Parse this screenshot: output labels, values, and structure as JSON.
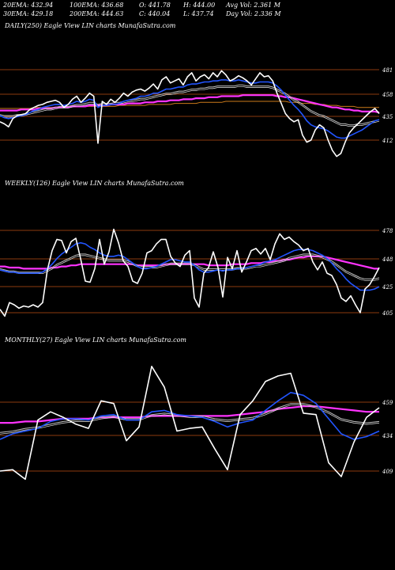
{
  "header": {
    "row1": {
      "ema20": "20EMA: 432.94",
      "ema100": "100EMA: 436.68",
      "open": "O: 441.78",
      "high": "H: 444.00",
      "avgvol": "Avg Vol: 2.361 M"
    },
    "row2": {
      "ema30": "30EMA: 429.18",
      "ema200": "200EMA: 444.63",
      "close": "C: 440.04",
      "low": "L: 437.74",
      "dayvol": "Day Vol: 2.336  M"
    }
  },
  "panels": [
    {
      "label": "DAILY(250) Eagle  View  LIN  charts MunafaSutra.com",
      "ticks": [
        "481",
        "458",
        "435",
        "412"
      ]
    },
    {
      "label": "WEEKLY(126) Eagle  View  LIN  charts MunafaSutra.com",
      "ticks": [
        "478",
        "448",
        "425",
        "405"
      ]
    },
    {
      "label": "MONTHLY(27) Eagle  View  LIN  charts MunafaSutra.com",
      "ticks": [
        "459",
        "434",
        "409"
      ]
    }
  ],
  "colors": {
    "background": "#000000",
    "price": "#ffffff",
    "ema_short": "#2255ff",
    "ema_long": "#ff33ff",
    "level_line": "#8b3a0e",
    "ema_mid": "#c0c0c0",
    "ema_orange": "#cc7a1a"
  },
  "chart_data": [
    {
      "type": "line",
      "title": "DAILY(250) Eagle  View  LIN  charts MunafaSutra.com",
      "ylim": [
        385,
        500
      ],
      "yticks": [
        481,
        458,
        435,
        412
      ],
      "series": [
        {
          "values": [
            430,
            428,
            425,
            433,
            436,
            437,
            438,
            442,
            444,
            446,
            447,
            449,
            450,
            451,
            449,
            444,
            447,
            452,
            455,
            449,
            453,
            458,
            455,
            409,
            450,
            447,
            452,
            449,
            453,
            458,
            455,
            459,
            461,
            462,
            460,
            463,
            467,
            462,
            471,
            474,
            468,
            470,
            472,
            466,
            474,
            478,
            470,
            474,
            476,
            472,
            478,
            474,
            480,
            476,
            470,
            472,
            475,
            473,
            470,
            466,
            472,
            478,
            474,
            475,
            470,
            458,
            448,
            438,
            433,
            430,
            432,
            417,
            410,
            412,
            422,
            427,
            424,
            412,
            402,
            396,
            399,
            410,
            419,
            424,
            428,
            432,
            436,
            440,
            443,
            438
          ]
        },
        {
          "values": [
            436,
            434,
            433,
            434,
            435,
            436,
            437,
            439,
            441,
            442,
            444,
            445,
            446,
            447,
            447,
            446,
            447,
            448,
            450,
            449,
            450,
            452,
            451,
            444,
            446,
            446,
            447,
            447,
            448,
            450,
            451,
            452,
            453,
            455,
            455,
            456,
            458,
            458,
            460,
            462,
            462,
            463,
            464,
            464,
            466,
            467,
            467,
            468,
            469,
            469,
            470,
            470,
            471,
            471,
            470,
            470,
            471,
            470,
            469,
            468,
            468,
            469,
            469,
            469,
            468,
            465,
            461,
            456,
            451,
            446,
            442,
            437,
            431,
            427,
            425,
            424,
            423,
            421,
            418,
            415,
            414,
            414,
            416,
            418,
            420,
            422,
            425,
            428,
            431,
            432
          ]
        },
        {
          "values": [
            437,
            436,
            436,
            436,
            437,
            437,
            438,
            439,
            440,
            441,
            442,
            443,
            443,
            444,
            445,
            445,
            445,
            446,
            447,
            447,
            448,
            449,
            449,
            447,
            448,
            448,
            448,
            449,
            449,
            450,
            451,
            451,
            452,
            453,
            453,
            454,
            455,
            456,
            457,
            458,
            458,
            459,
            460,
            460,
            461,
            462,
            462,
            463,
            463,
            464,
            464,
            465,
            465,
            465,
            465,
            465,
            466,
            466,
            465,
            465,
            465,
            465,
            465,
            465,
            464,
            462,
            460,
            458,
            455,
            452,
            450,
            447,
            444,
            441,
            439,
            437,
            436,
            434,
            432,
            430,
            428,
            428,
            427,
            427,
            428,
            428,
            429,
            430,
            431,
            432
          ]
        },
        {
          "values": [
            441,
            441,
            441,
            441,
            441,
            442,
            442,
            442,
            442,
            443,
            443,
            443,
            443,
            444,
            444,
            444,
            444,
            445,
            445,
            445,
            445,
            446,
            446,
            446,
            446,
            446,
            447,
            447,
            447,
            447,
            448,
            448,
            448,
            448,
            449,
            449,
            449,
            450,
            450,
            450,
            451,
            451,
            451,
            452,
            452,
            452,
            453,
            453,
            453,
            454,
            454,
            454,
            455,
            455,
            455,
            455,
            455,
            456,
            456,
            456,
            456,
            456,
            456,
            456,
            456,
            455,
            455,
            454,
            454,
            453,
            452,
            451,
            450,
            449,
            448,
            447,
            446,
            445,
            444,
            444,
            443,
            442,
            442,
            441,
            441,
            440,
            440,
            440,
            440,
            439
          ]
        },
        {
          "values": [
            443,
            443,
            443,
            443,
            443,
            443,
            443,
            443,
            444,
            444,
            444,
            444,
            444,
            444,
            444,
            444,
            444,
            445,
            445,
            445,
            445,
            445,
            445,
            445,
            445,
            445,
            445,
            445,
            446,
            446,
            446,
            446,
            446,
            446,
            446,
            447,
            447,
            447,
            447,
            447,
            447,
            448,
            448,
            448,
            448,
            448,
            448,
            449,
            449,
            449,
            449,
            449,
            449,
            450,
            450,
            450,
            450,
            450,
            450,
            450,
            450,
            450,
            450,
            450,
            450,
            450,
            450,
            450,
            449,
            449,
            449,
            448,
            448,
            448,
            447,
            447,
            447,
            446,
            446,
            446,
            445,
            445,
            445,
            445,
            444,
            444,
            444,
            444,
            444,
            444
          ]
        }
      ]
    },
    {
      "type": "line",
      "title": "WEEKLY(126) Eagle  View  LIN  charts MunafaSutra.com",
      "ylim": [
        385,
        500
      ],
      "yticks": [
        478,
        448,
        425,
        405
      ],
      "series": [
        {
          "values": [
            408,
            402,
            414,
            412,
            409,
            411,
            410,
            412,
            410,
            414,
            443,
            460,
            470,
            469,
            458,
            468,
            471,
            453,
            433,
            432,
            444,
            470,
            448,
            459,
            479,
            467,
            451,
            446,
            433,
            431,
            440,
            458,
            460,
            466,
            470,
            470,
            455,
            449,
            446,
            456,
            460,
            418,
            410,
            440,
            445,
            459,
            445,
            419,
            454,
            444,
            460,
            441,
            450,
            460,
            462,
            457,
            462,
            452,
            466,
            475,
            470,
            472,
            468,
            465,
            460,
            462,
            450,
            443,
            450,
            440,
            438,
            430,
            418,
            415,
            420,
            412,
            405,
            426,
            430,
            437,
            445
          ]
        },
        {
          "values": [
            443,
            442,
            441,
            441,
            440,
            440,
            440,
            440,
            440,
            441,
            444,
            448,
            453,
            457,
            460,
            463,
            466,
            467,
            466,
            463,
            461,
            458,
            456,
            455,
            455,
            456,
            455,
            452,
            449,
            446,
            444,
            444,
            445,
            446,
            448,
            450,
            452,
            452,
            451,
            450,
            450,
            447,
            443,
            441,
            441,
            442,
            443,
            442,
            443,
            443,
            444,
            444,
            445,
            446,
            447,
            448,
            450,
            451,
            452,
            454,
            456,
            458,
            460,
            461,
            461,
            461,
            460,
            458,
            456,
            453,
            449,
            444,
            440,
            435,
            431,
            428,
            425,
            425,
            425,
            426,
            428
          ]
        },
        {
          "values": [
            444,
            443,
            442,
            442,
            441,
            441,
            441,
            441,
            441,
            441,
            443,
            445,
            448,
            450,
            452,
            454,
            456,
            457,
            457,
            456,
            455,
            454,
            453,
            452,
            452,
            452,
            452,
            451,
            449,
            447,
            446,
            446,
            446,
            446,
            447,
            448,
            449,
            449,
            449,
            449,
            449,
            448,
            446,
            444,
            444,
            444,
            444,
            444,
            444,
            444,
            445,
            445,
            445,
            446,
            447,
            447,
            448,
            449,
            450,
            451,
            452,
            454,
            455,
            456,
            457,
            457,
            457,
            456,
            455,
            453,
            451,
            448,
            445,
            442,
            440,
            438,
            436,
            435,
            435,
            435,
            436
          ]
        },
        {
          "values": [
            446,
            446,
            445,
            445,
            445,
            444,
            444,
            444,
            444,
            444,
            444,
            445,
            445,
            446,
            446,
            447,
            447,
            448,
            448,
            448,
            448,
            448,
            448,
            448,
            448,
            448,
            448,
            448,
            448,
            447,
            447,
            447,
            447,
            447,
            447,
            448,
            448,
            448,
            448,
            448,
            448,
            448,
            448,
            448,
            447,
            447,
            447,
            447,
            447,
            448,
            448,
            448,
            448,
            449,
            449,
            449,
            450,
            450,
            451,
            451,
            452,
            452,
            453,
            454,
            454,
            455,
            455,
            455,
            455,
            454,
            453,
            452,
            451,
            450,
            449,
            448,
            447,
            446,
            445,
            444,
            444
          ]
        }
      ]
    },
    {
      "type": "line",
      "title": "MONTHLY(27) Eagle  View  LIN  charts MunafaSutra.com",
      "ylim": [
        385,
        500
      ],
      "yticks": [
        459,
        434,
        409
      ],
      "series": [
        {
          "values": [
            409,
            410,
            403,
            446,
            452,
            448,
            443,
            440,
            460,
            458,
            431,
            441,
            485,
            470,
            438,
            440,
            441,
            425,
            410,
            450,
            460,
            474,
            478,
            480,
            451,
            450,
            415,
            405,
            430,
            448,
            455
          ]
        },
        {
          "values": [
            432,
            436,
            438,
            440,
            445,
            447,
            447,
            446,
            449,
            450,
            446,
            446,
            452,
            453,
            450,
            449,
            448,
            445,
            441,
            444,
            446,
            453,
            460,
            466,
            464,
            458,
            447,
            436,
            432,
            434,
            438
          ]
        },
        {
          "values": [
            437,
            438,
            440,
            441,
            443,
            445,
            446,
            446,
            448,
            449,
            447,
            447,
            450,
            451,
            450,
            449,
            449,
            447,
            446,
            447,
            448,
            451,
            455,
            458,
            458,
            456,
            452,
            447,
            445,
            444,
            445
          ]
        },
        {
          "values": [
            444,
            444,
            445,
            445,
            446,
            447,
            447,
            447,
            448,
            448,
            448,
            448,
            449,
            449,
            449,
            449,
            449,
            449,
            449,
            450,
            451,
            452,
            454,
            455,
            456,
            456,
            455,
            454,
            453,
            452,
            452
          ]
        }
      ]
    }
  ]
}
